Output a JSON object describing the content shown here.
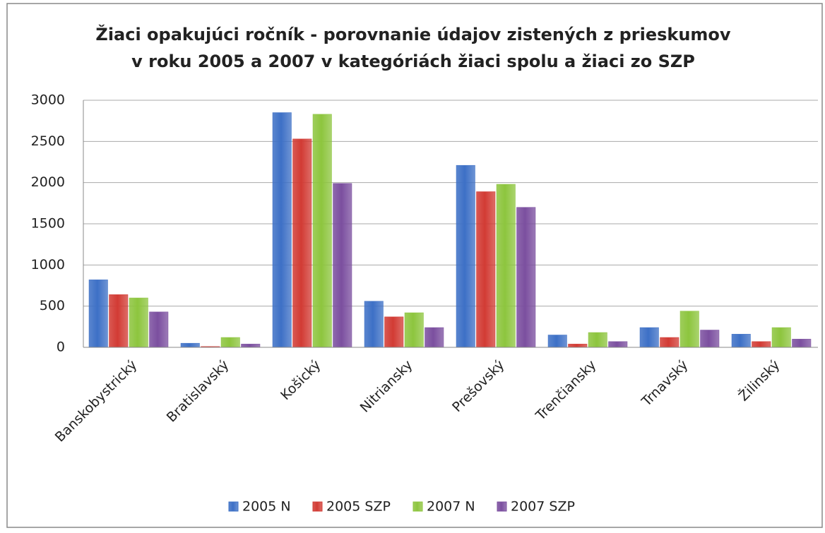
{
  "chart_data": {
    "type": "bar",
    "title": [
      "Žiaci opakujúci ročník - porovnanie údajov zistených z prieskumov",
      "v roku 2005 a 2007 v kategóriách žiaci spolu a žiaci zo SZP"
    ],
    "categories": [
      "Banskobystrický",
      "Bratislavský",
      "Košický",
      "Nitriansky",
      "Prešovský",
      "Trenčiansky",
      "Trnavský",
      "Žilinský"
    ],
    "series": [
      {
        "name": "2005 N",
        "color": "#3d70c6",
        "values": [
          820,
          50,
          2850,
          560,
          2210,
          150,
          240,
          160
        ]
      },
      {
        "name": "2005 SZP",
        "color": "#d23b34",
        "values": [
          640,
          10,
          2530,
          370,
          1890,
          40,
          120,
          70
        ]
      },
      {
        "name": "2007 N",
        "color": "#8dc53e",
        "values": [
          600,
          120,
          2830,
          420,
          1980,
          180,
          440,
          240
        ]
      },
      {
        "name": "2007 SZP",
        "color": "#7b4f9f",
        "values": [
          430,
          40,
          1990,
          240,
          1700,
          70,
          210,
          100
        ]
      }
    ],
    "ylim": [
      0,
      3000
    ],
    "yticks": [
      0,
      500,
      1000,
      1500,
      2000,
      2500,
      3000
    ],
    "grid": true,
    "legend": "bottom"
  }
}
